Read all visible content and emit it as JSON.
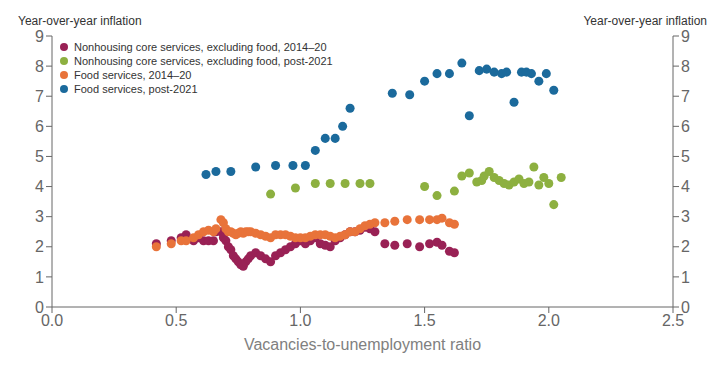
{
  "chart_data": {
    "type": "scatter",
    "ylabel": "Year-over-year inflation",
    "y2label": "Year-over-year inflation",
    "xlabel": "Vacancies-to-unemployment ratio",
    "xlim": [
      0.0,
      2.5
    ],
    "xticks": [
      {
        "value": 0,
        "label": "0.0"
      },
      0.5,
      {
        "value": 1,
        "label": "1.0"
      },
      1.5,
      {
        "value": 2,
        "label": "2.0"
      },
      2.5
    ],
    "ylim": [
      0,
      9
    ],
    "yticks": [
      0,
      1,
      2,
      3,
      4,
      5,
      6,
      7,
      8,
      9
    ],
    "y2lim": [
      0,
      9
    ],
    "y2ticks": [
      0,
      1,
      2,
      3,
      4,
      5,
      6,
      7,
      8,
      9
    ],
    "grid": false,
    "legend": "upper left",
    "series": [
      {
        "name": "Nonhousing core services, excluding food, 2014–20",
        "color": "#992155",
        "marker": "o",
        "x": [
          0.42,
          0.48,
          0.52,
          0.54,
          0.57,
          0.59,
          0.61,
          0.63,
          0.65,
          0.66,
          0.68,
          0.69,
          0.7,
          0.71,
          0.72,
          0.73,
          0.74,
          0.75,
          0.76,
          0.77,
          0.78,
          0.79,
          0.8,
          0.82,
          0.84,
          0.86,
          0.88,
          0.9,
          0.92,
          0.94,
          0.96,
          0.98,
          1.0,
          1.02,
          1.04,
          1.06,
          1.08,
          1.1,
          1.12,
          1.14,
          1.16,
          1.18,
          1.2,
          1.22,
          1.24,
          1.26,
          1.28,
          1.3,
          1.34,
          1.38,
          1.43,
          1.48,
          1.52,
          1.55,
          1.57,
          1.6,
          1.62
        ],
        "y": [
          2.1,
          2.2,
          2.3,
          2.4,
          2.2,
          2.3,
          2.2,
          2.2,
          2.2,
          2.5,
          2.5,
          2.3,
          2.2,
          2.0,
          1.9,
          1.7,
          1.6,
          1.5,
          1.4,
          1.35,
          1.5,
          1.6,
          1.7,
          1.8,
          1.7,
          1.6,
          1.5,
          1.7,
          1.8,
          1.9,
          2.0,
          2.1,
          2.2,
          2.1,
          2.2,
          2.3,
          2.1,
          2.05,
          2.0,
          2.2,
          2.3,
          2.4,
          2.5,
          2.5,
          2.55,
          2.65,
          2.6,
          2.5,
          2.1,
          2.05,
          2.1,
          2.0,
          2.1,
          2.15,
          2.05,
          1.85,
          1.8
        ]
      },
      {
        "name": "Nonhousing core services, excluding food, post-2021",
        "color": "#8DB040",
        "marker": "o",
        "x": [
          0.88,
          0.98,
          1.06,
          1.12,
          1.18,
          1.24,
          1.28,
          1.5,
          1.55,
          1.62,
          1.65,
          1.68,
          1.71,
          1.73,
          1.74,
          1.76,
          1.78,
          1.8,
          1.82,
          1.84,
          1.86,
          1.88,
          1.9,
          1.92,
          1.94,
          1.96,
          1.98,
          2.0,
          2.02,
          2.05
        ],
        "y": [
          3.75,
          3.95,
          4.1,
          4.1,
          4.1,
          4.1,
          4.1,
          4.0,
          3.7,
          3.85,
          4.35,
          4.45,
          4.15,
          4.2,
          4.35,
          4.5,
          4.3,
          4.2,
          4.1,
          4.05,
          4.15,
          4.25,
          4.1,
          4.15,
          4.65,
          4.05,
          4.3,
          4.1,
          3.4,
          4.3
        ]
      },
      {
        "name": "Food services, 2014–20",
        "color": "#E8733A",
        "marker": "o",
        "x": [
          0.42,
          0.48,
          0.52,
          0.54,
          0.57,
          0.59,
          0.61,
          0.63,
          0.65,
          0.66,
          0.68,
          0.69,
          0.7,
          0.71,
          0.72,
          0.73,
          0.74,
          0.75,
          0.76,
          0.77,
          0.78,
          0.79,
          0.8,
          0.82,
          0.84,
          0.86,
          0.88,
          0.9,
          0.92,
          0.94,
          0.96,
          0.98,
          1.0,
          1.02,
          1.04,
          1.06,
          1.08,
          1.1,
          1.12,
          1.14,
          1.16,
          1.18,
          1.2,
          1.22,
          1.24,
          1.26,
          1.28,
          1.3,
          1.34,
          1.38,
          1.43,
          1.48,
          1.52,
          1.55,
          1.57,
          1.6,
          1.62
        ],
        "y": [
          2.0,
          2.1,
          2.2,
          2.2,
          2.3,
          2.4,
          2.5,
          2.55,
          2.5,
          2.6,
          2.9,
          2.8,
          2.6,
          2.5,
          2.5,
          2.45,
          2.4,
          2.45,
          2.5,
          2.45,
          2.5,
          2.5,
          2.5,
          2.45,
          2.4,
          2.35,
          2.3,
          2.4,
          2.4,
          2.4,
          2.35,
          2.3,
          2.3,
          2.3,
          2.35,
          2.4,
          2.4,
          2.4,
          2.35,
          2.3,
          2.35,
          2.4,
          2.5,
          2.5,
          2.6,
          2.7,
          2.75,
          2.8,
          2.8,
          2.85,
          2.9,
          2.9,
          2.9,
          2.9,
          2.95,
          2.8,
          2.75
        ]
      },
      {
        "name": "Food services, post-2021",
        "color": "#1B6A9C",
        "marker": "o",
        "x": [
          0.62,
          0.66,
          0.72,
          0.82,
          0.9,
          0.97,
          1.02,
          1.06,
          1.1,
          1.14,
          1.17,
          1.2,
          1.37,
          1.44,
          1.5,
          1.55,
          1.6,
          1.65,
          1.68,
          1.72,
          1.75,
          1.78,
          1.81,
          1.83,
          1.86,
          1.89,
          1.91,
          1.93,
          1.96,
          1.99,
          2.02
        ],
        "y": [
          4.4,
          4.5,
          4.5,
          4.65,
          4.7,
          4.7,
          4.7,
          5.2,
          5.6,
          5.6,
          6.0,
          6.6,
          7.1,
          7.05,
          7.5,
          7.75,
          7.75,
          8.1,
          6.35,
          7.85,
          7.9,
          7.8,
          7.75,
          7.8,
          6.8,
          7.8,
          7.8,
          7.75,
          7.5,
          7.75,
          7.2
        ]
      }
    ]
  }
}
